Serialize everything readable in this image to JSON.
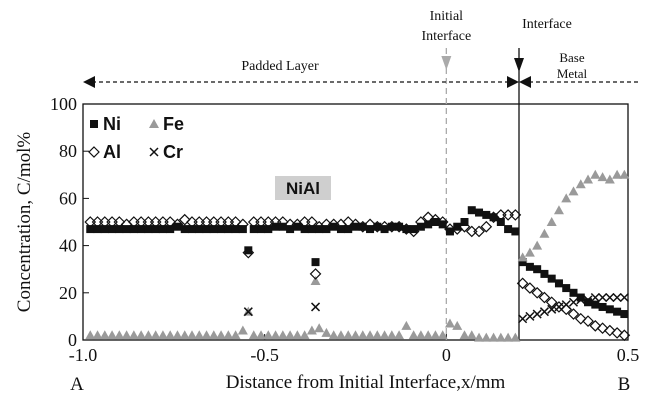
{
  "chart_data": {
    "type": "scatter",
    "xlabel": "Distance from Initial Interface,x/mm",
    "ylabel": "Concentration, C/mol%",
    "xlim": [
      -1.0,
      0.5
    ],
    "ylim": [
      0,
      100
    ],
    "xticks": [
      "-1.0",
      "-0.5",
      "0",
      "0.5"
    ],
    "yticks": [
      "0",
      "20",
      "40",
      "60",
      "80",
      "100"
    ],
    "end_labels": {
      "left": "A",
      "right": "B"
    },
    "legend_position": "top-left",
    "phase_label": "NiAl",
    "initial_interface_x": 0,
    "interface_x": 0.2,
    "annotations": {
      "initial_interface": [
        "Initial",
        "Interface"
      ],
      "interface": "Interface",
      "padded_layer": "Padded Layer",
      "base_metal": [
        "Base",
        "Metal"
      ]
    },
    "colors": {
      "fe": "#9a9a9a",
      "ink": "#111111",
      "phase_box": "#cfcfcf",
      "dashed": "#aaaaaa"
    },
    "series": [
      {
        "name": "Ni",
        "marker": "square",
        "x": [
          -0.98,
          -0.96,
          -0.94,
          -0.92,
          -0.9,
          -0.88,
          -0.86,
          -0.84,
          -0.82,
          -0.8,
          -0.78,
          -0.76,
          -0.74,
          -0.72,
          -0.7,
          -0.68,
          -0.66,
          -0.64,
          -0.62,
          -0.6,
          -0.58,
          -0.56,
          -0.545,
          -0.53,
          -0.51,
          -0.49,
          -0.47,
          -0.45,
          -0.43,
          -0.41,
          -0.39,
          -0.37,
          -0.36,
          -0.35,
          -0.33,
          -0.31,
          -0.29,
          -0.27,
          -0.25,
          -0.23,
          -0.21,
          -0.19,
          -0.17,
          -0.15,
          -0.13,
          -0.11,
          -0.09,
          -0.07,
          -0.05,
          -0.03,
          -0.01,
          0.01,
          0.03,
          0.05,
          0.07,
          0.09,
          0.11,
          0.13,
          0.15,
          0.17,
          0.19,
          0.21,
          0.23,
          0.25,
          0.27,
          0.29,
          0.31,
          0.33,
          0.35,
          0.37,
          0.39,
          0.41,
          0.43,
          0.45,
          0.47,
          0.49
        ],
        "values": [
          47,
          47,
          47,
          47,
          47,
          47,
          47,
          47,
          47,
          47,
          47,
          47,
          48,
          47,
          47,
          47,
          47,
          47,
          47,
          47,
          47,
          47,
          38,
          47,
          47,
          47,
          48,
          48,
          47,
          48,
          47,
          47,
          33,
          47,
          47,
          48,
          47,
          47,
          48,
          48,
          47,
          48,
          47,
          48,
          48,
          47,
          47,
          48,
          49,
          50,
          49,
          46,
          48,
          50,
          55,
          54,
          53,
          52,
          50,
          47,
          46,
          33,
          31,
          30,
          28,
          26,
          24,
          22,
          20,
          18,
          16,
          15,
          14,
          13,
          12,
          11
        ]
      },
      {
        "name": "Fe",
        "marker": "triangle",
        "x": [
          -0.98,
          -0.96,
          -0.94,
          -0.92,
          -0.9,
          -0.88,
          -0.86,
          -0.84,
          -0.82,
          -0.8,
          -0.78,
          -0.76,
          -0.74,
          -0.72,
          -0.7,
          -0.68,
          -0.66,
          -0.64,
          -0.62,
          -0.6,
          -0.58,
          -0.56,
          -0.545,
          -0.53,
          -0.51,
          -0.49,
          -0.47,
          -0.45,
          -0.43,
          -0.41,
          -0.39,
          -0.37,
          -0.36,
          -0.35,
          -0.33,
          -0.31,
          -0.29,
          -0.27,
          -0.25,
          -0.23,
          -0.21,
          -0.19,
          -0.17,
          -0.15,
          -0.13,
          -0.11,
          -0.09,
          -0.07,
          -0.05,
          -0.03,
          -0.01,
          0.01,
          0.03,
          0.05,
          0.07,
          0.09,
          0.11,
          0.13,
          0.15,
          0.17,
          0.19,
          0.21,
          0.23,
          0.25,
          0.27,
          0.29,
          0.31,
          0.33,
          0.35,
          0.37,
          0.39,
          0.41,
          0.43,
          0.45,
          0.47,
          0.49
        ],
        "values": [
          2,
          2,
          2,
          2,
          2,
          2,
          2,
          2,
          2,
          2,
          2,
          2,
          2,
          2,
          2,
          2,
          2,
          2,
          2,
          2,
          2,
          4,
          12,
          2,
          2,
          2,
          2,
          2,
          2,
          2,
          2,
          4,
          25,
          5,
          3,
          2,
          2,
          2,
          2,
          2,
          2,
          2,
          2,
          2,
          2,
          6,
          2,
          2,
          2,
          2,
          2,
          7,
          6,
          2,
          2,
          1,
          1,
          1,
          1,
          1,
          1,
          35,
          37,
          40,
          45,
          50,
          55,
          60,
          63,
          66,
          68,
          70,
          69,
          68,
          70,
          70
        ]
      },
      {
        "name": "Al",
        "marker": "diamond",
        "x": [
          -0.98,
          -0.96,
          -0.94,
          -0.92,
          -0.9,
          -0.88,
          -0.86,
          -0.84,
          -0.82,
          -0.8,
          -0.78,
          -0.76,
          -0.74,
          -0.72,
          -0.7,
          -0.68,
          -0.66,
          -0.64,
          -0.62,
          -0.6,
          -0.58,
          -0.56,
          -0.545,
          -0.53,
          -0.51,
          -0.49,
          -0.47,
          -0.45,
          -0.43,
          -0.41,
          -0.39,
          -0.37,
          -0.36,
          -0.35,
          -0.33,
          -0.31,
          -0.29,
          -0.27,
          -0.25,
          -0.23,
          -0.21,
          -0.19,
          -0.17,
          -0.15,
          -0.13,
          -0.11,
          -0.09,
          -0.07,
          -0.05,
          -0.03,
          -0.01,
          0.01,
          0.03,
          0.05,
          0.07,
          0.09,
          0.11,
          0.13,
          0.15,
          0.17,
          0.19,
          0.21,
          0.23,
          0.25,
          0.27,
          0.29,
          0.31,
          0.33,
          0.35,
          0.37,
          0.39,
          0.41,
          0.43,
          0.45,
          0.47,
          0.49
        ],
        "values": [
          50,
          50,
          50,
          50,
          50,
          49,
          50,
          50,
          50,
          50,
          50,
          50,
          49,
          51,
          50,
          50,
          50,
          50,
          50,
          50,
          50,
          49,
          37,
          50,
          50,
          50,
          50,
          50,
          49,
          49,
          50,
          50,
          28,
          48,
          49,
          49,
          49,
          50,
          49,
          48,
          49,
          48,
          48,
          48,
          48,
          47,
          46,
          50,
          52,
          51,
          50,
          47,
          47,
          48,
          46,
          46,
          48,
          52,
          53,
          53,
          53,
          24,
          22,
          20,
          18,
          16,
          14,
          13,
          11,
          9,
          8,
          6,
          5,
          4,
          3,
          2
        ]
      },
      {
        "name": "Cr",
        "marker": "x",
        "x": [
          -0.545,
          -0.36,
          0.21,
          0.23,
          0.25,
          0.27,
          0.29,
          0.31,
          0.33,
          0.35,
          0.37,
          0.39,
          0.41,
          0.43,
          0.45,
          0.47,
          0.49
        ],
        "values": [
          12,
          14,
          9,
          10,
          11,
          12,
          13,
          14,
          15,
          16,
          17,
          17,
          18,
          18,
          18,
          18,
          18
        ]
      }
    ]
  }
}
